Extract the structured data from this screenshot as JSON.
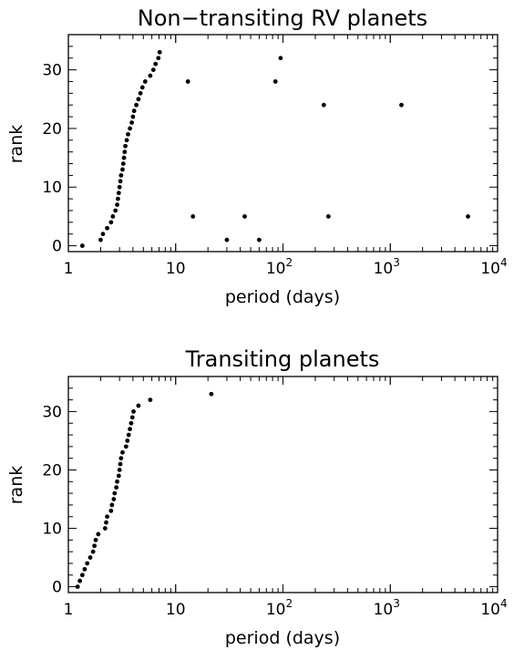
{
  "chart_data": [
    {
      "type": "scatter",
      "title": "Non−transiting RV planets",
      "xlabel": "period (days)",
      "ylabel": "rank",
      "xscale": "log",
      "xlim": [
        1,
        10000
      ],
      "ylim": [
        -1,
        36
      ],
      "x_tick_labels": [
        "1",
        "10",
        "10",
        "10",
        "10"
      ],
      "x_tick_exponents": [
        "",
        "",
        "2",
        "3",
        "4"
      ],
      "y_tick_labels": [
        "0",
        "10",
        "20",
        "30"
      ],
      "y_ticks": [
        0,
        10,
        20,
        30
      ],
      "points": [
        {
          "x": 1.35,
          "y": 0
        },
        {
          "x": 2.0,
          "y": 1
        },
        {
          "x": 2.1,
          "y": 2
        },
        {
          "x": 2.3,
          "y": 3
        },
        {
          "x": 2.5,
          "y": 4
        },
        {
          "x": 2.6,
          "y": 5
        },
        {
          "x": 2.75,
          "y": 6
        },
        {
          "x": 2.85,
          "y": 7
        },
        {
          "x": 2.9,
          "y": 8
        },
        {
          "x": 2.95,
          "y": 9
        },
        {
          "x": 3.0,
          "y": 10
        },
        {
          "x": 3.05,
          "y": 11
        },
        {
          "x": 3.1,
          "y": 12
        },
        {
          "x": 3.2,
          "y": 13
        },
        {
          "x": 3.25,
          "y": 14
        },
        {
          "x": 3.3,
          "y": 15
        },
        {
          "x": 3.35,
          "y": 16
        },
        {
          "x": 3.4,
          "y": 17
        },
        {
          "x": 3.5,
          "y": 18
        },
        {
          "x": 3.6,
          "y": 19
        },
        {
          "x": 3.75,
          "y": 20
        },
        {
          "x": 3.9,
          "y": 21
        },
        {
          "x": 4.0,
          "y": 22
        },
        {
          "x": 4.1,
          "y": 23
        },
        {
          "x": 4.3,
          "y": 24
        },
        {
          "x": 4.5,
          "y": 25
        },
        {
          "x": 4.7,
          "y": 26
        },
        {
          "x": 4.9,
          "y": 27
        },
        {
          "x": 5.2,
          "y": 28
        },
        {
          "x": 5.8,
          "y": 29
        },
        {
          "x": 6.2,
          "y": 30
        },
        {
          "x": 6.5,
          "y": 31
        },
        {
          "x": 6.9,
          "y": 32
        },
        {
          "x": 7.1,
          "y": 33
        },
        {
          "x": 13,
          "y": 28
        },
        {
          "x": 14.5,
          "y": 5
        },
        {
          "x": 30,
          "y": 1
        },
        {
          "x": 44,
          "y": 5
        },
        {
          "x": 60,
          "y": 1
        },
        {
          "x": 85,
          "y": 28
        },
        {
          "x": 95,
          "y": 32
        },
        {
          "x": 240,
          "y": 24
        },
        {
          "x": 265,
          "y": 5
        },
        {
          "x": 1270,
          "y": 24
        },
        {
          "x": 5300,
          "y": 5
        }
      ]
    },
    {
      "type": "scatter",
      "title": "Transiting planets",
      "xlabel": "period (days)",
      "ylabel": "rank",
      "xscale": "log",
      "xlim": [
        1,
        10000
      ],
      "ylim": [
        -1,
        36
      ],
      "x_tick_labels": [
        "1",
        "10",
        "10",
        "10",
        "10"
      ],
      "x_tick_exponents": [
        "",
        "",
        "2",
        "3",
        "4"
      ],
      "y_tick_labels": [
        "0",
        "10",
        "20",
        "30"
      ],
      "y_ticks": [
        0,
        10,
        20,
        30
      ],
      "points": [
        {
          "x": 1.22,
          "y": 0
        },
        {
          "x": 1.28,
          "y": 1
        },
        {
          "x": 1.35,
          "y": 2
        },
        {
          "x": 1.42,
          "y": 3
        },
        {
          "x": 1.5,
          "y": 4
        },
        {
          "x": 1.6,
          "y": 5
        },
        {
          "x": 1.7,
          "y": 6
        },
        {
          "x": 1.75,
          "y": 7
        },
        {
          "x": 1.8,
          "y": 8
        },
        {
          "x": 1.9,
          "y": 9
        },
        {
          "x": 2.2,
          "y": 10
        },
        {
          "x": 2.25,
          "y": 11
        },
        {
          "x": 2.3,
          "y": 12
        },
        {
          "x": 2.5,
          "y": 13
        },
        {
          "x": 2.55,
          "y": 14
        },
        {
          "x": 2.65,
          "y": 15
        },
        {
          "x": 2.7,
          "y": 16
        },
        {
          "x": 2.8,
          "y": 17
        },
        {
          "x": 2.85,
          "y": 18
        },
        {
          "x": 2.95,
          "y": 19
        },
        {
          "x": 3.0,
          "y": 20
        },
        {
          "x": 3.05,
          "y": 21
        },
        {
          "x": 3.1,
          "y": 22
        },
        {
          "x": 3.2,
          "y": 23
        },
        {
          "x": 3.45,
          "y": 24
        },
        {
          "x": 3.55,
          "y": 25
        },
        {
          "x": 3.65,
          "y": 26
        },
        {
          "x": 3.75,
          "y": 27
        },
        {
          "x": 3.85,
          "y": 28
        },
        {
          "x": 3.95,
          "y": 29
        },
        {
          "x": 4.05,
          "y": 30
        },
        {
          "x": 4.5,
          "y": 31
        },
        {
          "x": 5.8,
          "y": 32
        },
        {
          "x": 21.5,
          "y": 33
        }
      ]
    }
  ]
}
